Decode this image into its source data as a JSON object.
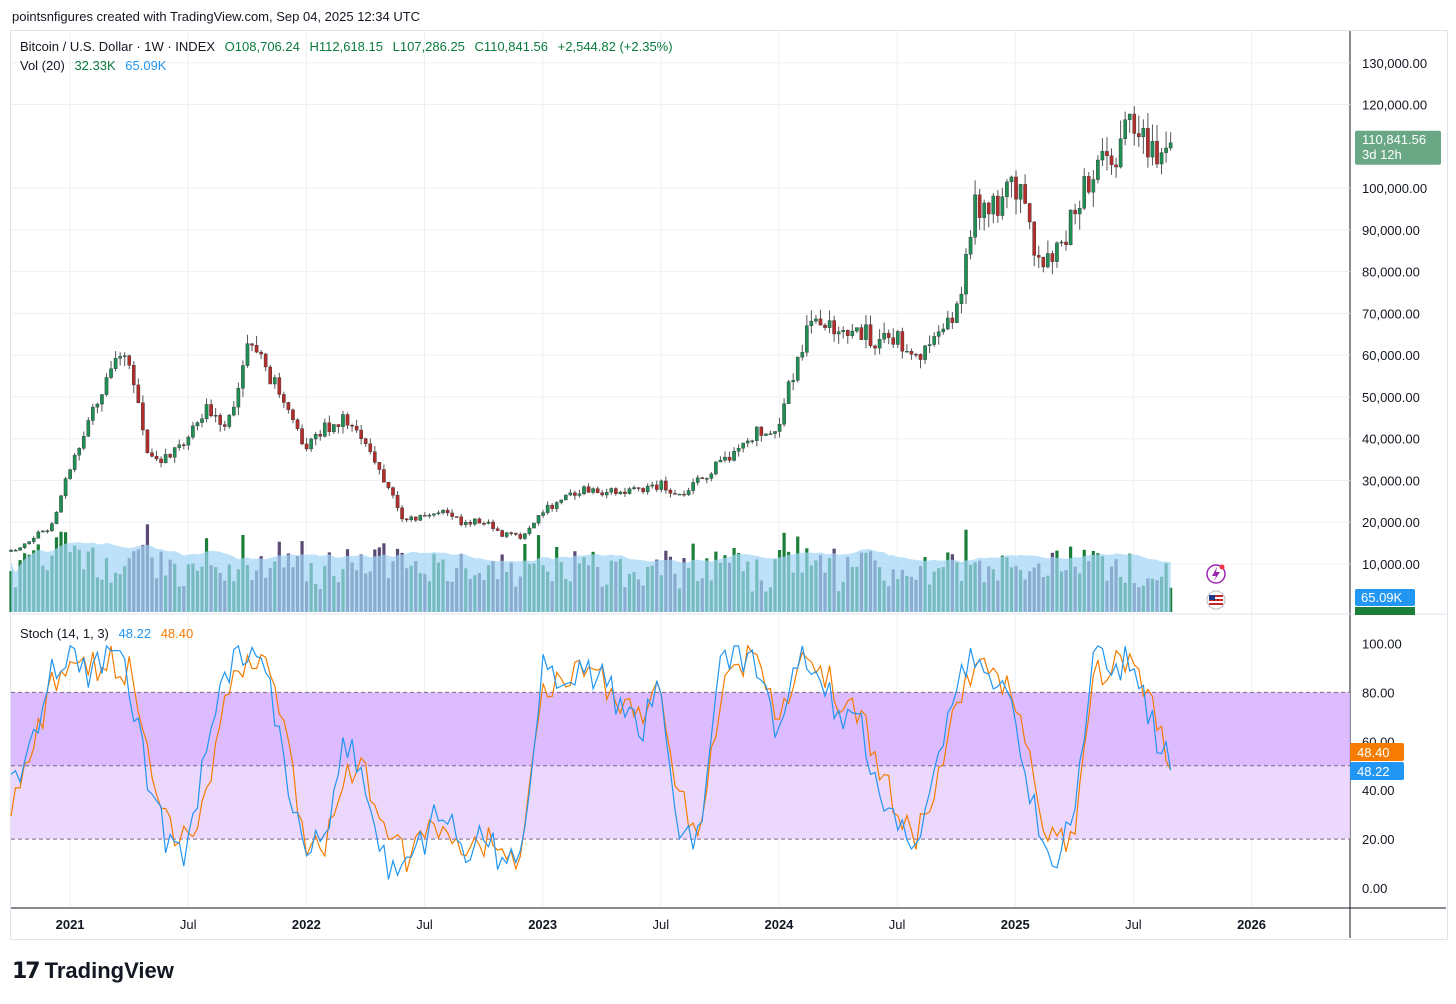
{
  "header": {
    "text": "pointsnfigures created with TradingView.com, Sep 04, 2025 12:34 UTC"
  },
  "legend": {
    "symbol": "Bitcoin / U.S. Dollar · 1W · INDEX",
    "open": "O108,706.24",
    "high": "H112,618.15",
    "low": "L107,286.25",
    "close": "C110,841.56",
    "change": "+2,544.82 (+2.35%)",
    "vol_label": "Vol (20)",
    "vol_value": "32.33K",
    "vol_ma": "65.09K",
    "stoch_label": "Stoch (14, 1, 3)",
    "stoch_k": "48.22",
    "stoch_d": "48.40"
  },
  "footer": {
    "brand": "TradingView"
  },
  "colors": {
    "up": "#089981",
    "down": "#f23645",
    "candle_up": "#26a69a",
    "vol_up": "#1b7f3a",
    "vol_down": "#5b4a74",
    "vol_ma_fill": "#9fd4f7",
    "stoch_k": "#2196f3",
    "stoch_d": "#f57c00",
    "band_fill": "#d8b4fe",
    "band_fill_light": "#ead4fc"
  },
  "chart_data": [
    {
      "type": "candlestick",
      "title": "Bitcoin / U.S. Dollar · 1W · INDEX",
      "xlabel": "",
      "ylabel": "",
      "x_ticks": [
        "2021",
        "Jul",
        "2022",
        "Jul",
        "2023",
        "Jul",
        "2024",
        "Jul",
        "2025",
        "Jul",
        "2026"
      ],
      "x_range": [
        "2020-10",
        "2026-06"
      ],
      "y_ticks": [
        "10,000.00",
        "20,000.00",
        "30,000.00",
        "40,000.00",
        "50,000.00",
        "60,000.00",
        "70,000.00",
        "80,000.00",
        "90,000.00",
        "100,000.00",
        "120,000.00",
        "130,000.00"
      ],
      "ylim": [
        0,
        135000
      ],
      "last_price_label": "110,841.56",
      "last_price_countdown": "3d 12h",
      "close_path": [
        [
          "2020-10",
          13000
        ],
        [
          "2020-12",
          19000
        ],
        [
          "2021-01",
          33000
        ],
        [
          "2021-02",
          45000
        ],
        [
          "2021-03",
          57000
        ],
        [
          "2021-04",
          58000
        ],
        [
          "2021-05",
          36000
        ],
        [
          "2021-06",
          35000
        ],
        [
          "2021-07",
          40000
        ],
        [
          "2021-08",
          47000
        ],
        [
          "2021-09",
          44000
        ],
        [
          "2021-10",
          61000
        ],
        [
          "2021-11",
          57000
        ],
        [
          "2021-12",
          46000
        ],
        [
          "2022-01",
          38000
        ],
        [
          "2022-02",
          43000
        ],
        [
          "2022-03",
          45000
        ],
        [
          "2022-04",
          38000
        ],
        [
          "2022-05",
          30000
        ],
        [
          "2022-06",
          20000
        ],
        [
          "2022-08",
          23000
        ],
        [
          "2022-09",
          19500
        ],
        [
          "2022-10",
          20500
        ],
        [
          "2022-11",
          17000
        ],
        [
          "2022-12",
          16500
        ],
        [
          "2023-01",
          23000
        ],
        [
          "2023-03",
          28000
        ],
        [
          "2023-05",
          27000
        ],
        [
          "2023-07",
          29000
        ],
        [
          "2023-08",
          26000
        ],
        [
          "2023-10",
          34000
        ],
        [
          "2023-12",
          42000
        ],
        [
          "2024-01",
          43000
        ],
        [
          "2024-02",
          61000
        ],
        [
          "2024-03",
          70000
        ],
        [
          "2024-04",
          63000
        ],
        [
          "2024-05",
          67000
        ],
        [
          "2024-06",
          62000
        ],
        [
          "2024-07",
          65000
        ],
        [
          "2024-08",
          59000
        ],
        [
          "2024-09",
          63000
        ],
        [
          "2024-10",
          70000
        ],
        [
          "2024-11",
          97000
        ],
        [
          "2024-12",
          94000
        ],
        [
          "2025-01",
          102000
        ],
        [
          "2025-02",
          84000
        ],
        [
          "2025-03",
          83000
        ],
        [
          "2025-04",
          94000
        ],
        [
          "2025-05",
          104000
        ],
        [
          "2025-06",
          107000
        ],
        [
          "2025-07",
          118000
        ],
        [
          "2025-08",
          108000
        ],
        [
          "2025-09",
          110841.56
        ]
      ]
    },
    {
      "type": "bar",
      "title": "Vol (20)",
      "xlabel": "",
      "ylabel": "",
      "series": [
        {
          "name": "Vol",
          "last": "32.33K"
        },
        {
          "name": "MA",
          "last": "65.09K"
        }
      ]
    },
    {
      "type": "line",
      "title": "Stoch (14, 1, 3)",
      "xlabel": "",
      "ylabel": "",
      "y_ticks": [
        "0.00",
        "20.00",
        "40.00",
        "60.00",
        "80.00",
        "100.00"
      ],
      "ylim": [
        -5,
        105
      ],
      "bands": [
        20,
        50,
        80
      ],
      "series": [
        {
          "name": "%K",
          "last": "48.22"
        },
        {
          "name": "%D",
          "last": "48.40"
        }
      ],
      "k_path": [
        [
          "2020-10",
          40
        ],
        [
          "2020-11",
          55
        ],
        [
          "2020-12",
          90
        ],
        [
          "2021-01",
          95
        ],
        [
          "2021-02",
          88
        ],
        [
          "2021-03",
          97
        ],
        [
          "2021-04",
          85
        ],
        [
          "2021-05",
          40
        ],
        [
          "2021-06",
          18
        ],
        [
          "2021-07",
          15
        ],
        [
          "2021-08",
          60
        ],
        [
          "2021-09",
          88
        ],
        [
          "2021-10",
          97
        ],
        [
          "2021-11",
          90
        ],
        [
          "2021-12",
          45
        ],
        [
          "2022-01",
          10
        ],
        [
          "2022-02",
          25
        ],
        [
          "2022-03",
          60
        ],
        [
          "2022-04",
          45
        ],
        [
          "2022-05",
          10
        ],
        [
          "2022-06",
          8
        ],
        [
          "2022-07",
          20
        ],
        [
          "2022-08",
          35
        ],
        [
          "2022-09",
          12
        ],
        [
          "2022-10",
          22
        ],
        [
          "2022-11",
          10
        ],
        [
          "2022-12",
          15
        ],
        [
          "2023-01",
          95
        ],
        [
          "2023-02",
          80
        ],
        [
          "2023-03",
          90
        ],
        [
          "2023-04",
          85
        ],
        [
          "2023-05",
          75
        ],
        [
          "2023-06",
          65
        ],
        [
          "2023-07",
          85
        ],
        [
          "2023-08",
          20
        ],
        [
          "2023-09",
          20
        ],
        [
          "2023-10",
          90
        ],
        [
          "2023-11",
          95
        ],
        [
          "2023-12",
          92
        ],
        [
          "2024-01",
          60
        ],
        [
          "2024-02",
          97
        ],
        [
          "2024-03",
          90
        ],
        [
          "2024-04",
          70
        ],
        [
          "2024-05",
          75
        ],
        [
          "2024-06",
          40
        ],
        [
          "2024-07",
          25
        ],
        [
          "2024-08",
          15
        ],
        [
          "2024-09",
          50
        ],
        [
          "2024-10",
          85
        ],
        [
          "2024-11",
          95
        ],
        [
          "2024-12",
          85
        ],
        [
          "2025-01",
          70
        ],
        [
          "2025-02",
          30
        ],
        [
          "2025-03",
          10
        ],
        [
          "2025-04",
          30
        ],
        [
          "2025-05",
          95
        ],
        [
          "2025-06",
          90
        ],
        [
          "2025-07",
          95
        ],
        [
          "2025-08",
          65
        ],
        [
          "2025-09",
          48.22
        ]
      ],
      "d_path": [
        [
          "2020-10",
          35
        ],
        [
          "2020-11",
          50
        ],
        [
          "2020-12",
          85
        ],
        [
          "2021-01",
          92
        ],
        [
          "2021-02",
          90
        ],
        [
          "2021-03",
          93
        ],
        [
          "2021-04",
          88
        ],
        [
          "2021-05",
          55
        ],
        [
          "2021-06",
          25
        ],
        [
          "2021-07",
          18
        ],
        [
          "2021-08",
          45
        ],
        [
          "2021-09",
          80
        ],
        [
          "2021-10",
          93
        ],
        [
          "2021-11",
          92
        ],
        [
          "2021-12",
          60
        ],
        [
          "2022-01",
          20
        ],
        [
          "2022-02",
          20
        ],
        [
          "2022-03",
          50
        ],
        [
          "2022-04",
          50
        ],
        [
          "2022-05",
          20
        ],
        [
          "2022-06",
          12
        ],
        [
          "2022-07",
          18
        ],
        [
          "2022-08",
          30
        ],
        [
          "2022-09",
          18
        ],
        [
          "2022-10",
          20
        ],
        [
          "2022-11",
          14
        ],
        [
          "2022-12",
          14
        ],
        [
          "2023-01",
          80
        ],
        [
          "2023-02",
          85
        ],
        [
          "2023-03",
          88
        ],
        [
          "2023-04",
          86
        ],
        [
          "2023-05",
          78
        ],
        [
          "2023-06",
          70
        ],
        [
          "2023-07",
          80
        ],
        [
          "2023-08",
          35
        ],
        [
          "2023-09",
          22
        ],
        [
          "2023-10",
          80
        ],
        [
          "2023-11",
          93
        ],
        [
          "2023-12",
          93
        ],
        [
          "2024-01",
          70
        ],
        [
          "2024-02",
          90
        ],
        [
          "2024-03",
          92
        ],
        [
          "2024-04",
          78
        ],
        [
          "2024-05",
          74
        ],
        [
          "2024-06",
          50
        ],
        [
          "2024-07",
          32
        ],
        [
          "2024-08",
          20
        ],
        [
          "2024-09",
          42
        ],
        [
          "2024-10",
          78
        ],
        [
          "2024-11",
          92
        ],
        [
          "2024-12",
          88
        ],
        [
          "2025-01",
          75
        ],
        [
          "2025-02",
          40
        ],
        [
          "2025-03",
          15
        ],
        [
          "2025-04",
          25
        ],
        [
          "2025-05",
          85
        ],
        [
          "2025-06",
          92
        ],
        [
          "2025-07",
          93
        ],
        [
          "2025-08",
          75
        ],
        [
          "2025-09",
          48.4
        ]
      ]
    }
  ]
}
